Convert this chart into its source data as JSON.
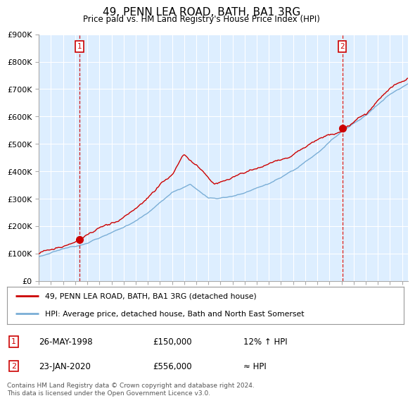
{
  "title": "49, PENN LEA ROAD, BATH, BA1 3RG",
  "subtitle": "Price paid vs. HM Land Registry's House Price Index (HPI)",
  "ylim": [
    0,
    900000
  ],
  "yticks": [
    0,
    100000,
    200000,
    300000,
    400000,
    500000,
    600000,
    700000,
    800000,
    900000
  ],
  "ytick_labels": [
    "£0",
    "£100K",
    "£200K",
    "£300K",
    "£400K",
    "£500K",
    "£600K",
    "£700K",
    "£800K",
    "£900K"
  ],
  "sale1": {
    "date": 1998.38,
    "price": 150000,
    "label": "1"
  },
  "sale2": {
    "date": 2020.06,
    "price": 556000,
    "label": "2"
  },
  "line_color_red": "#cc0000",
  "line_color_blue": "#7aaed6",
  "vline_color": "#cc0000",
  "background_color": "#ffffff",
  "chart_bg_color": "#ddeeff",
  "grid_color": "#ffffff",
  "legend_label_red": "49, PENN LEA ROAD, BATH, BA1 3RG (detached house)",
  "legend_label_blue": "HPI: Average price, detached house, Bath and North East Somerset",
  "table_rows": [
    {
      "num": "1",
      "date": "26-MAY-1998",
      "price": "£150,000",
      "hpi": "12% ↑ HPI"
    },
    {
      "num": "2",
      "date": "23-JAN-2020",
      "price": "£556,000",
      "hpi": "≈ HPI"
    }
  ],
  "footnote": "Contains HM Land Registry data © Crown copyright and database right 2024.\nThis data is licensed under the Open Government Licence v3.0.",
  "xlim_start": 1995.0,
  "xlim_end": 2025.5
}
